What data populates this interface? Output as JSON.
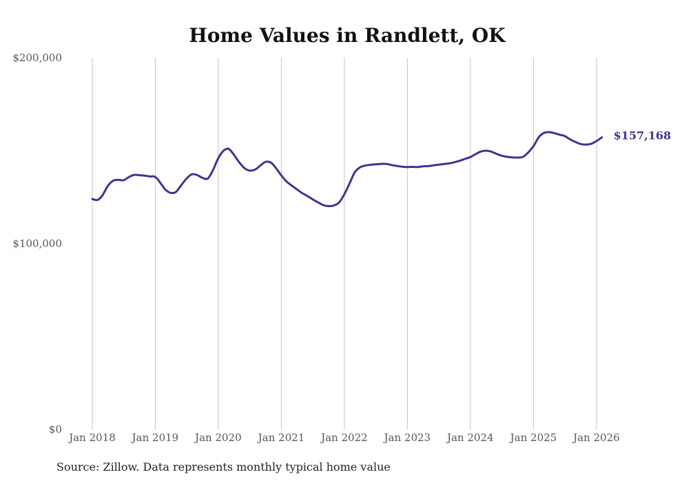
{
  "chart_data": {
    "type": "line",
    "title": "Home Values in Randlett, OK",
    "xlabel": "",
    "ylabel": "",
    "ylim": [
      0,
      200000
    ],
    "y_ticks": [
      0,
      100000,
      200000
    ],
    "y_tick_labels": [
      "$0",
      "$100,000",
      "$200,000"
    ],
    "x_ticks": [
      "2018-01",
      "2019-01",
      "2020-01",
      "2021-01",
      "2022-01",
      "2023-01",
      "2024-01",
      "2025-01",
      "2026-01"
    ],
    "x_tick_labels": [
      "Jan 2018",
      "Jan 2019",
      "Jan 2020",
      "Jan 2021",
      "Jan 2022",
      "Jan 2023",
      "Jan 2024",
      "Jan 2025",
      "Jan 2026"
    ],
    "grid": "vertical",
    "series_color": "#3b3595",
    "end_label": "$157,168",
    "source": "Source: Zillow. Data represents monthly typical home value",
    "series": [
      {
        "x": [
          "2018-01",
          "2018-02",
          "2018-03",
          "2018-04",
          "2018-05",
          "2018-06",
          "2018-07",
          "2018-08",
          "2018-09",
          "2018-10",
          "2018-11",
          "2018-12",
          "2019-01",
          "2019-02",
          "2019-03",
          "2019-04",
          "2019-05",
          "2019-06",
          "2019-07",
          "2019-08",
          "2019-09",
          "2019-10",
          "2019-11",
          "2019-12",
          "2020-01",
          "2020-02",
          "2020-03",
          "2020-04",
          "2020-05",
          "2020-06",
          "2020-07",
          "2020-08",
          "2020-09",
          "2020-10",
          "2020-11",
          "2020-12",
          "2021-01",
          "2021-02",
          "2021-03",
          "2021-04",
          "2021-05",
          "2021-06",
          "2021-07",
          "2021-08",
          "2021-09",
          "2021-10",
          "2021-11",
          "2021-12",
          "2022-01",
          "2022-02",
          "2022-03",
          "2022-04",
          "2022-05",
          "2022-06",
          "2022-07",
          "2022-08",
          "2022-09",
          "2022-10",
          "2022-11",
          "2022-12",
          "2023-01",
          "2023-02",
          "2023-03",
          "2023-04",
          "2023-05",
          "2023-06",
          "2023-07",
          "2023-08",
          "2023-09",
          "2023-10",
          "2023-11",
          "2023-12",
          "2024-01",
          "2024-02",
          "2024-03",
          "2024-04",
          "2024-05",
          "2024-06",
          "2024-07",
          "2024-08",
          "2024-09",
          "2024-10",
          "2024-11",
          "2024-12",
          "2025-01",
          "2025-02",
          "2025-03",
          "2025-04",
          "2025-05",
          "2025-06",
          "2025-07",
          "2025-08",
          "2025-09",
          "2025-10",
          "2025-11",
          "2025-12",
          "2026-01",
          "2026-02"
        ],
        "values": [
          124000,
          123500,
          126000,
          131000,
          133800,
          134300,
          134100,
          135800,
          137000,
          136800,
          136600,
          136100,
          135900,
          132500,
          129000,
          127300,
          127800,
          131500,
          135000,
          137300,
          136900,
          135400,
          135000,
          139500,
          146000,
          150000,
          151000,
          147800,
          143800,
          140600,
          139300,
          139800,
          142000,
          144000,
          143600,
          140600,
          136600,
          133300,
          131300,
          129200,
          127200,
          125600,
          123800,
          122200,
          120700,
          120200,
          120500,
          122100,
          126600,
          132600,
          138200,
          141000,
          142000,
          142400,
          142700,
          142900,
          142900,
          142300,
          141800,
          141400,
          141200,
          141300,
          141200,
          141600,
          141700,
          142100,
          142500,
          142800,
          143200,
          143800,
          144600,
          145600,
          146600,
          148200,
          149500,
          150000,
          149500,
          148300,
          147300,
          146700,
          146400,
          146300,
          146700,
          149000,
          152500,
          157300,
          159500,
          160000,
          159500,
          158600,
          157900,
          156100,
          154700,
          153600,
          153300,
          153700,
          155200,
          157168
        ]
      }
    ]
  }
}
